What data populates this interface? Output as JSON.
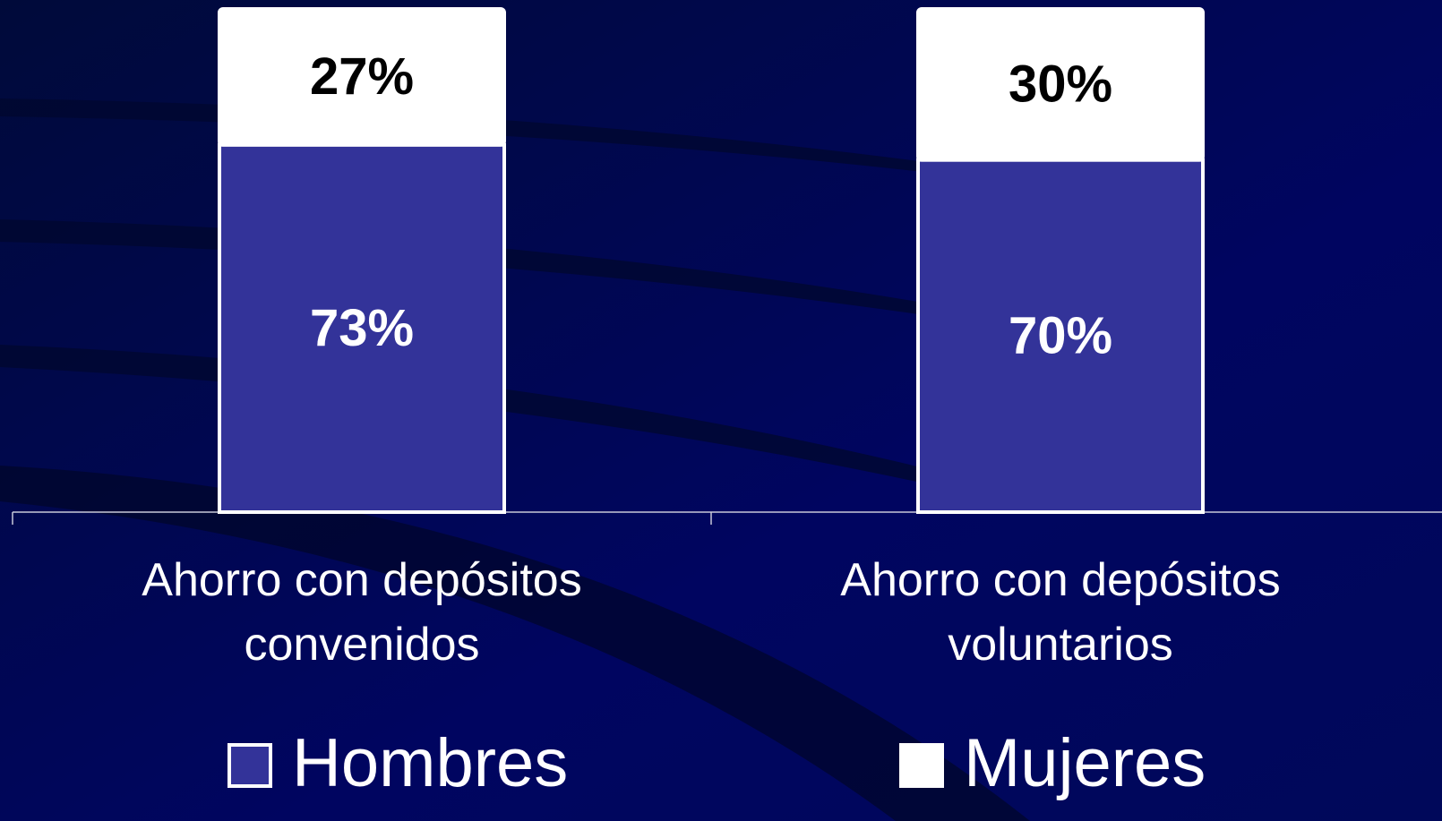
{
  "chart_data": {
    "type": "stacked_bar",
    "categories": [
      "Ahorro con depósitos convenidos",
      "Ahorro con depósitos voluntarios"
    ],
    "series": [
      {
        "name": "Hombres",
        "color": "#333399",
        "values": [
          73,
          70
        ],
        "value_labels": [
          "73%",
          "70%"
        ]
      },
      {
        "name": "Mujeres",
        "color": "#ffffff",
        "values": [
          27,
          30
        ],
        "value_labels": [
          "27%",
          "30%"
        ]
      }
    ],
    "ylim": [
      0,
      100
    ]
  }
}
